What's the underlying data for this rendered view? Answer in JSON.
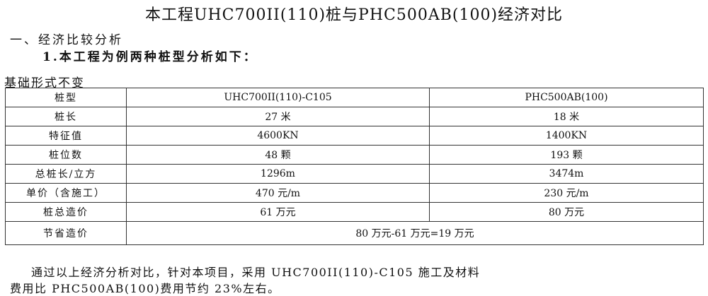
{
  "title": "本工程UHC700II(110)桩与PHC500AB(100)经济对比",
  "section": "一、经济比较分析",
  "subsection": "1.本工程为例两种桩型分析如下：",
  "caption": "基础形式不变",
  "table": {
    "rows": [
      [
        "桩型",
        "UHC700II(110)-C105",
        "PHC500AB(100)"
      ],
      [
        "桩长",
        "27 米",
        "18 米"
      ],
      [
        "特征值",
        "4600KN",
        "1400KN"
      ],
      [
        "桩位数",
        "48 颗",
        "193 颗"
      ],
      [
        "总桩长/立方",
        "1296m",
        "3474m"
      ],
      [
        "单价（含施工）",
        "470 元/m",
        "230 元/m"
      ],
      [
        "桩总造价",
        "61 万元",
        "80 万元"
      ]
    ],
    "savings_label": "节省造价",
    "savings_value": "80 万元-61 万元=19 万元"
  },
  "conclusion": {
    "line1": "通过以上经济分析对比，针对本项目，采用 UHC700II(110)-C105 施工及材料",
    "line2": "费用比 PHC500AB(100)费用节约 23%左右。"
  }
}
